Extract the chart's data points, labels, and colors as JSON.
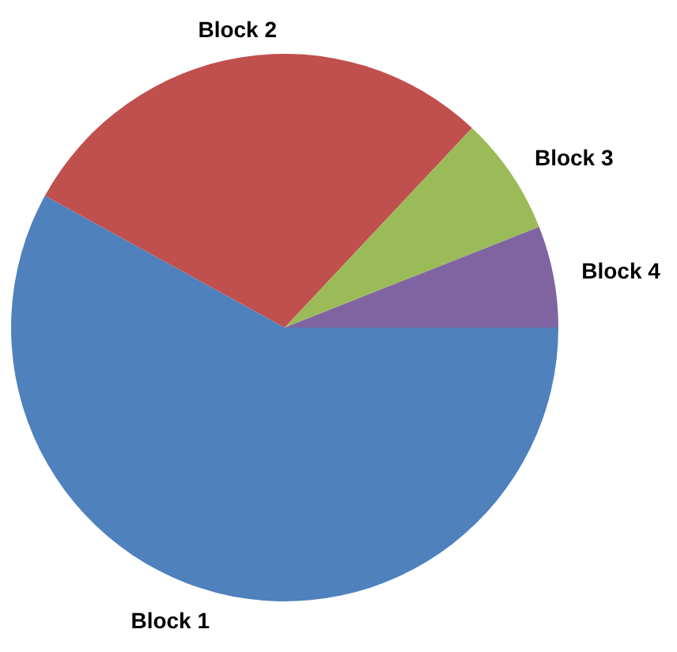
{
  "chart_data": {
    "type": "pie",
    "categories": [
      "Block 1",
      "Block 2",
      "Block 3",
      "Block 4"
    ],
    "values": [
      58,
      29,
      7,
      6
    ],
    "colors": [
      "#4f81bd",
      "#c0504d",
      "#9bbb59",
      "#8064a2"
    ]
  }
}
